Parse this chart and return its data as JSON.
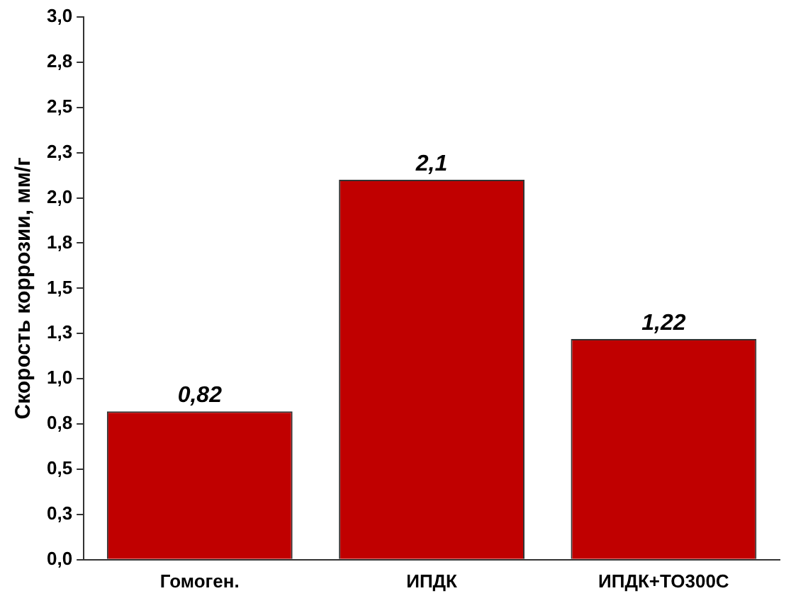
{
  "chart_data": {
    "type": "bar",
    "ylabel": "Скорость коррозии, мм/г",
    "categories": [
      "Гомоген.",
      "ИПДК",
      "ИПДК+ТО300С"
    ],
    "values": [
      0.82,
      2.1,
      1.22
    ],
    "value_labels": [
      "0,82",
      "2,1",
      "1,22"
    ],
    "color": "#c00000",
    "ylim": [
      0,
      3
    ],
    "yticks": [
      {
        "value": 0,
        "label": "0,0"
      },
      {
        "value": 0.25,
        "label": "0,3"
      },
      {
        "value": 0.5,
        "label": "0,5"
      },
      {
        "value": 0.75,
        "label": "0,8"
      },
      {
        "value": 1,
        "label": "1,0"
      },
      {
        "value": 1.25,
        "label": "1,3"
      },
      {
        "value": 1.5,
        "label": "1,5"
      },
      {
        "value": 1.75,
        "label": "1,8"
      },
      {
        "value": 2,
        "label": "2,0"
      },
      {
        "value": 2.25,
        "label": "2,3"
      },
      {
        "value": 2.5,
        "label": "2,5"
      },
      {
        "value": 2.75,
        "label": "2,8"
      },
      {
        "value": 3,
        "label": "3,0"
      }
    ],
    "grid": false,
    "legend": false
  }
}
